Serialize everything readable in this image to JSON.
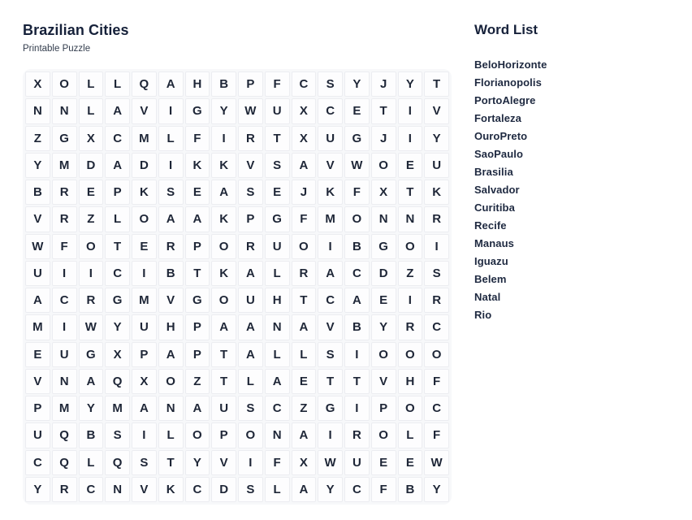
{
  "page": {
    "title": "Brazilian Cities",
    "subtitle": "Printable Puzzle"
  },
  "word_list": {
    "title": "Word List",
    "words": [
      "BeloHorizonte",
      "Florianopolis",
      "PortoAlegre",
      "Fortaleza",
      "OuroPreto",
      "SaoPaulo",
      "Brasilia",
      "Salvador",
      "Curitiba",
      "Recife",
      "Manaus",
      "Iguazu",
      "Belem",
      "Natal",
      "Rio"
    ]
  },
  "grid": {
    "rows": 16,
    "cols": 16,
    "letters": [
      [
        "X",
        "O",
        "L",
        "L",
        "Q",
        "A",
        "H",
        "B",
        "P",
        "F",
        "C",
        "S",
        "Y",
        "J",
        "Y",
        "T"
      ],
      [
        "N",
        "N",
        "L",
        "A",
        "V",
        "I",
        "G",
        "Y",
        "W",
        "U",
        "X",
        "C",
        "E",
        "T",
        "I",
        "V"
      ],
      [
        "Z",
        "G",
        "X",
        "C",
        "M",
        "L",
        "F",
        "I",
        "R",
        "T",
        "X",
        "U",
        "G",
        "J",
        "I",
        "Y"
      ],
      [
        "Y",
        "M",
        "D",
        "A",
        "D",
        "I",
        "K",
        "K",
        "V",
        "S",
        "A",
        "V",
        "W",
        "O",
        "E",
        "U"
      ],
      [
        "B",
        "R",
        "E",
        "P",
        "K",
        "S",
        "E",
        "A",
        "S",
        "E",
        "J",
        "K",
        "F",
        "X",
        "T",
        "K"
      ],
      [
        "V",
        "R",
        "Z",
        "L",
        "O",
        "A",
        "A",
        "K",
        "P",
        "G",
        "F",
        "M",
        "O",
        "N",
        "N",
        "R"
      ],
      [
        "W",
        "F",
        "O",
        "T",
        "E",
        "R",
        "P",
        "O",
        "R",
        "U",
        "O",
        "I",
        "B",
        "G",
        "O",
        "I"
      ],
      [
        "U",
        "I",
        "I",
        "C",
        "I",
        "B",
        "T",
        "K",
        "A",
        "L",
        "R",
        "A",
        "C",
        "D",
        "Z",
        "S"
      ],
      [
        "A",
        "C",
        "R",
        "G",
        "M",
        "V",
        "G",
        "O",
        "U",
        "H",
        "T",
        "C",
        "A",
        "E",
        "I",
        "R"
      ],
      [
        "M",
        "I",
        "W",
        "Y",
        "U",
        "H",
        "P",
        "A",
        "A",
        "N",
        "A",
        "V",
        "B",
        "Y",
        "R",
        "C"
      ],
      [
        "E",
        "U",
        "G",
        "X",
        "P",
        "A",
        "P",
        "T",
        "A",
        "L",
        "L",
        "S",
        "I",
        "O",
        "O",
        "O"
      ],
      [
        "V",
        "N",
        "A",
        "Q",
        "X",
        "O",
        "Z",
        "T",
        "L",
        "A",
        "E",
        "T",
        "T",
        "V",
        "H",
        "F"
      ],
      [
        "P",
        "M",
        "Y",
        "M",
        "A",
        "N",
        "A",
        "U",
        "S",
        "C",
        "Z",
        "G",
        "I",
        "P",
        "O",
        "C"
      ],
      [
        "U",
        "Q",
        "B",
        "S",
        "I",
        "L",
        "O",
        "P",
        "O",
        "N",
        "A",
        "I",
        "R",
        "O",
        "L",
        "F"
      ],
      [
        "C",
        "Q",
        "L",
        "Q",
        "S",
        "T",
        "Y",
        "V",
        "I",
        "F",
        "X",
        "W",
        "U",
        "E",
        "E",
        "W"
      ],
      [
        "Y",
        "R",
        "C",
        "N",
        "V",
        "K",
        "C",
        "D",
        "S",
        "L",
        "A",
        "Y",
        "C",
        "F",
        "B",
        "Y"
      ]
    ]
  },
  "colors": {
    "text": "#16213a",
    "letter": "#1e2637",
    "grid_bg": "#f7f8fa",
    "cell_bg": "#fdfdfe",
    "cell_border": "#ecedf1"
  }
}
